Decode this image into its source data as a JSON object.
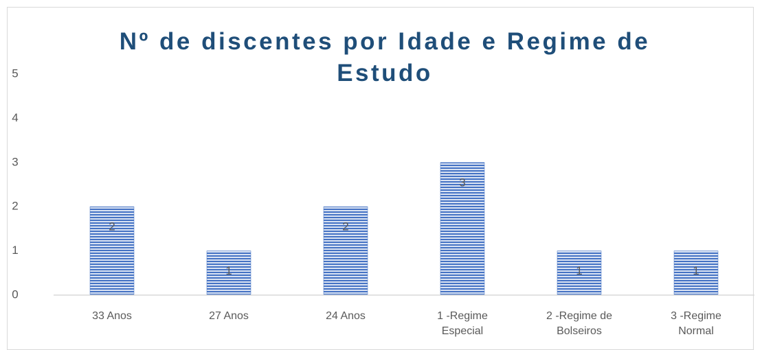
{
  "chart_data": {
    "type": "bar",
    "title": "Nº de discentes por Idade e Regime de Estudo",
    "categories": [
      "33 Anos",
      "27 Anos",
      "24 Anos",
      "1 -Regime Especial",
      "2 -Regime de Bolseiros",
      "3 -Regime Normal"
    ],
    "values": [
      2,
      1,
      2,
      3,
      1,
      1
    ],
    "color": "#4472c4",
    "ylim": [
      0,
      5
    ],
    "yticks": [
      0,
      1,
      2,
      3,
      4,
      5
    ],
    "grid": false
  }
}
